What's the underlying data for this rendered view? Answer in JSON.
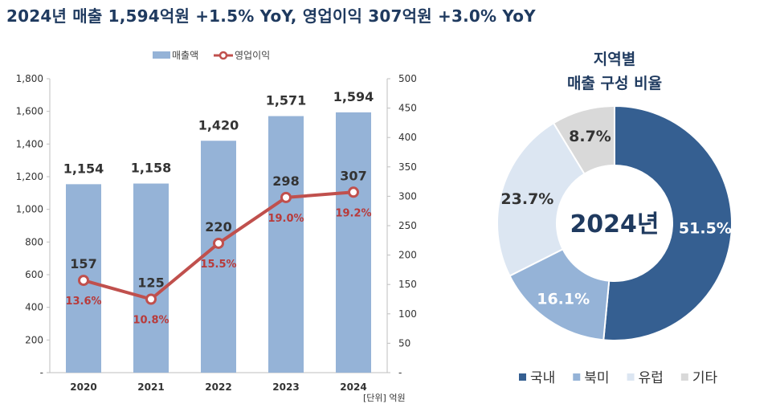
{
  "headline": "2024년 매출 1,594억원 +1.5% YoY, 영업이익 307억원 +3.0% YoY",
  "chart_data": [
    {
      "type": "bar",
      "categories": [
        "2020",
        "2021",
        "2022",
        "2023",
        "2024"
      ],
      "series": [
        {
          "name": "매출액",
          "kind": "bar",
          "axis": "left",
          "color": "#95b3d7",
          "values": [
            1154,
            1158,
            1420,
            1571,
            1594
          ],
          "labels": [
            "1,154",
            "1,158",
            "1,420",
            "1,571",
            "1,594"
          ]
        },
        {
          "name": "영업이익",
          "kind": "line",
          "axis": "right",
          "color": "#c0504d",
          "values": [
            157,
            125,
            220,
            298,
            307
          ],
          "labels": [
            "157",
            "125",
            "220",
            "298",
            "307"
          ],
          "margins": [
            "13.6%",
            "10.8%",
            "15.5%",
            "19.0%",
            "19.2%"
          ]
        }
      ],
      "ylim_left": [
        0,
        1800
      ],
      "ylim_right": [
        0,
        500
      ],
      "left_ticks": [
        "-",
        "200",
        "400",
        "600",
        "800",
        "1,000",
        "1,200",
        "1,400",
        "1,600",
        "1,800"
      ],
      "right_ticks": [
        "-",
        "50",
        "100",
        "150",
        "200",
        "250",
        "300",
        "350",
        "400",
        "450",
        "500"
      ],
      "unit_note": "[단위] 억원",
      "legend_position": "top"
    },
    {
      "type": "pie",
      "title_lines": [
        "지역별",
        "매출 구성 비율"
      ],
      "center_text": "2024년",
      "slices": [
        {
          "name": "국내",
          "value": 51.5,
          "label": "51.5%",
          "color": "#355f91",
          "text_color": "#ffffff"
        },
        {
          "name": "북미",
          "value": 16.1,
          "label": "16.1%",
          "color": "#95b3d7",
          "text_color": "#ffffff"
        },
        {
          "name": "유럽",
          "value": 23.7,
          "label": "23.7%",
          "color": "#dce6f2",
          "text_color": "#333333"
        },
        {
          "name": "기타",
          "value": 8.7,
          "label": "8.7%",
          "color": "#d9d9d9",
          "text_color": "#333333"
        }
      ],
      "legend_position": "bottom"
    }
  ]
}
